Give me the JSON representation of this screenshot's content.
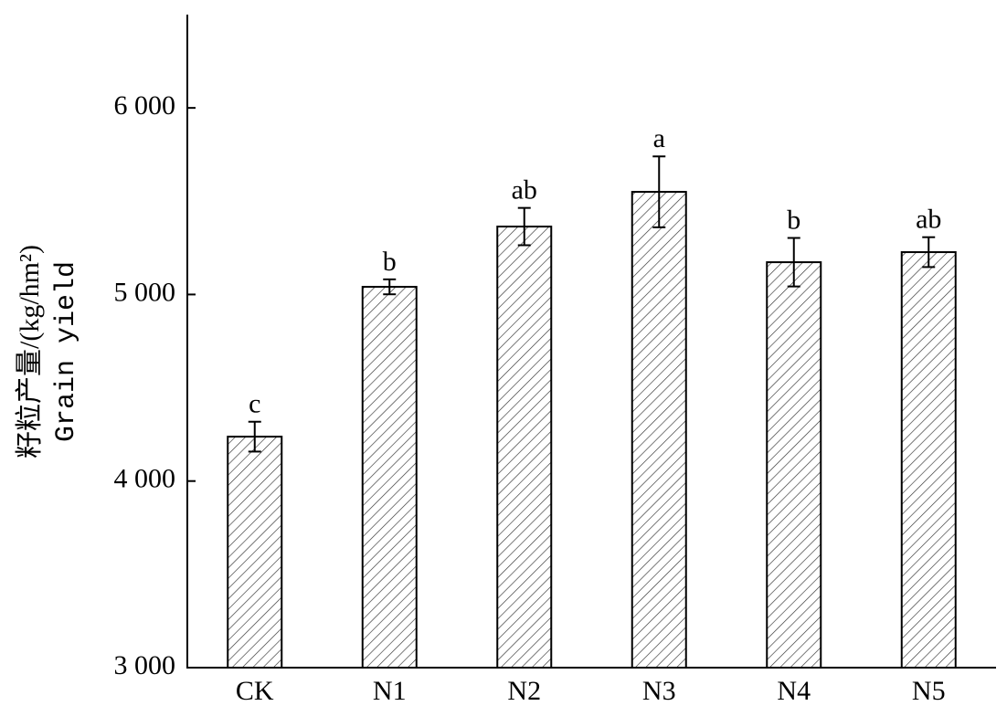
{
  "chart_data": {
    "type": "bar",
    "y_label": [
      "籽粒产量/(kg/hm²)",
      "Grain yield"
    ],
    "categories": [
      "CK",
      "N1",
      "N2",
      "N3",
      "N4",
      "N5"
    ],
    "values": [
      4238,
      5041,
      5364,
      5550,
      5173,
      5227
    ],
    "errors": [
      80,
      40,
      100,
      190,
      130,
      80
    ],
    "letters": [
      "c",
      "b",
      "ab",
      "a",
      "b",
      "ab"
    ],
    "color": "#ffffff",
    "hatch_color": "#333333",
    "ylim": [
      3000,
      6500
    ],
    "yticks": [
      {
        "value": 3000,
        "label": "3 000"
      },
      {
        "value": 4000,
        "label": "4 000"
      },
      {
        "value": 5000,
        "label": "5 000"
      },
      {
        "value": 6000,
        "label": "6 000"
      }
    ],
    "grid": false
  }
}
